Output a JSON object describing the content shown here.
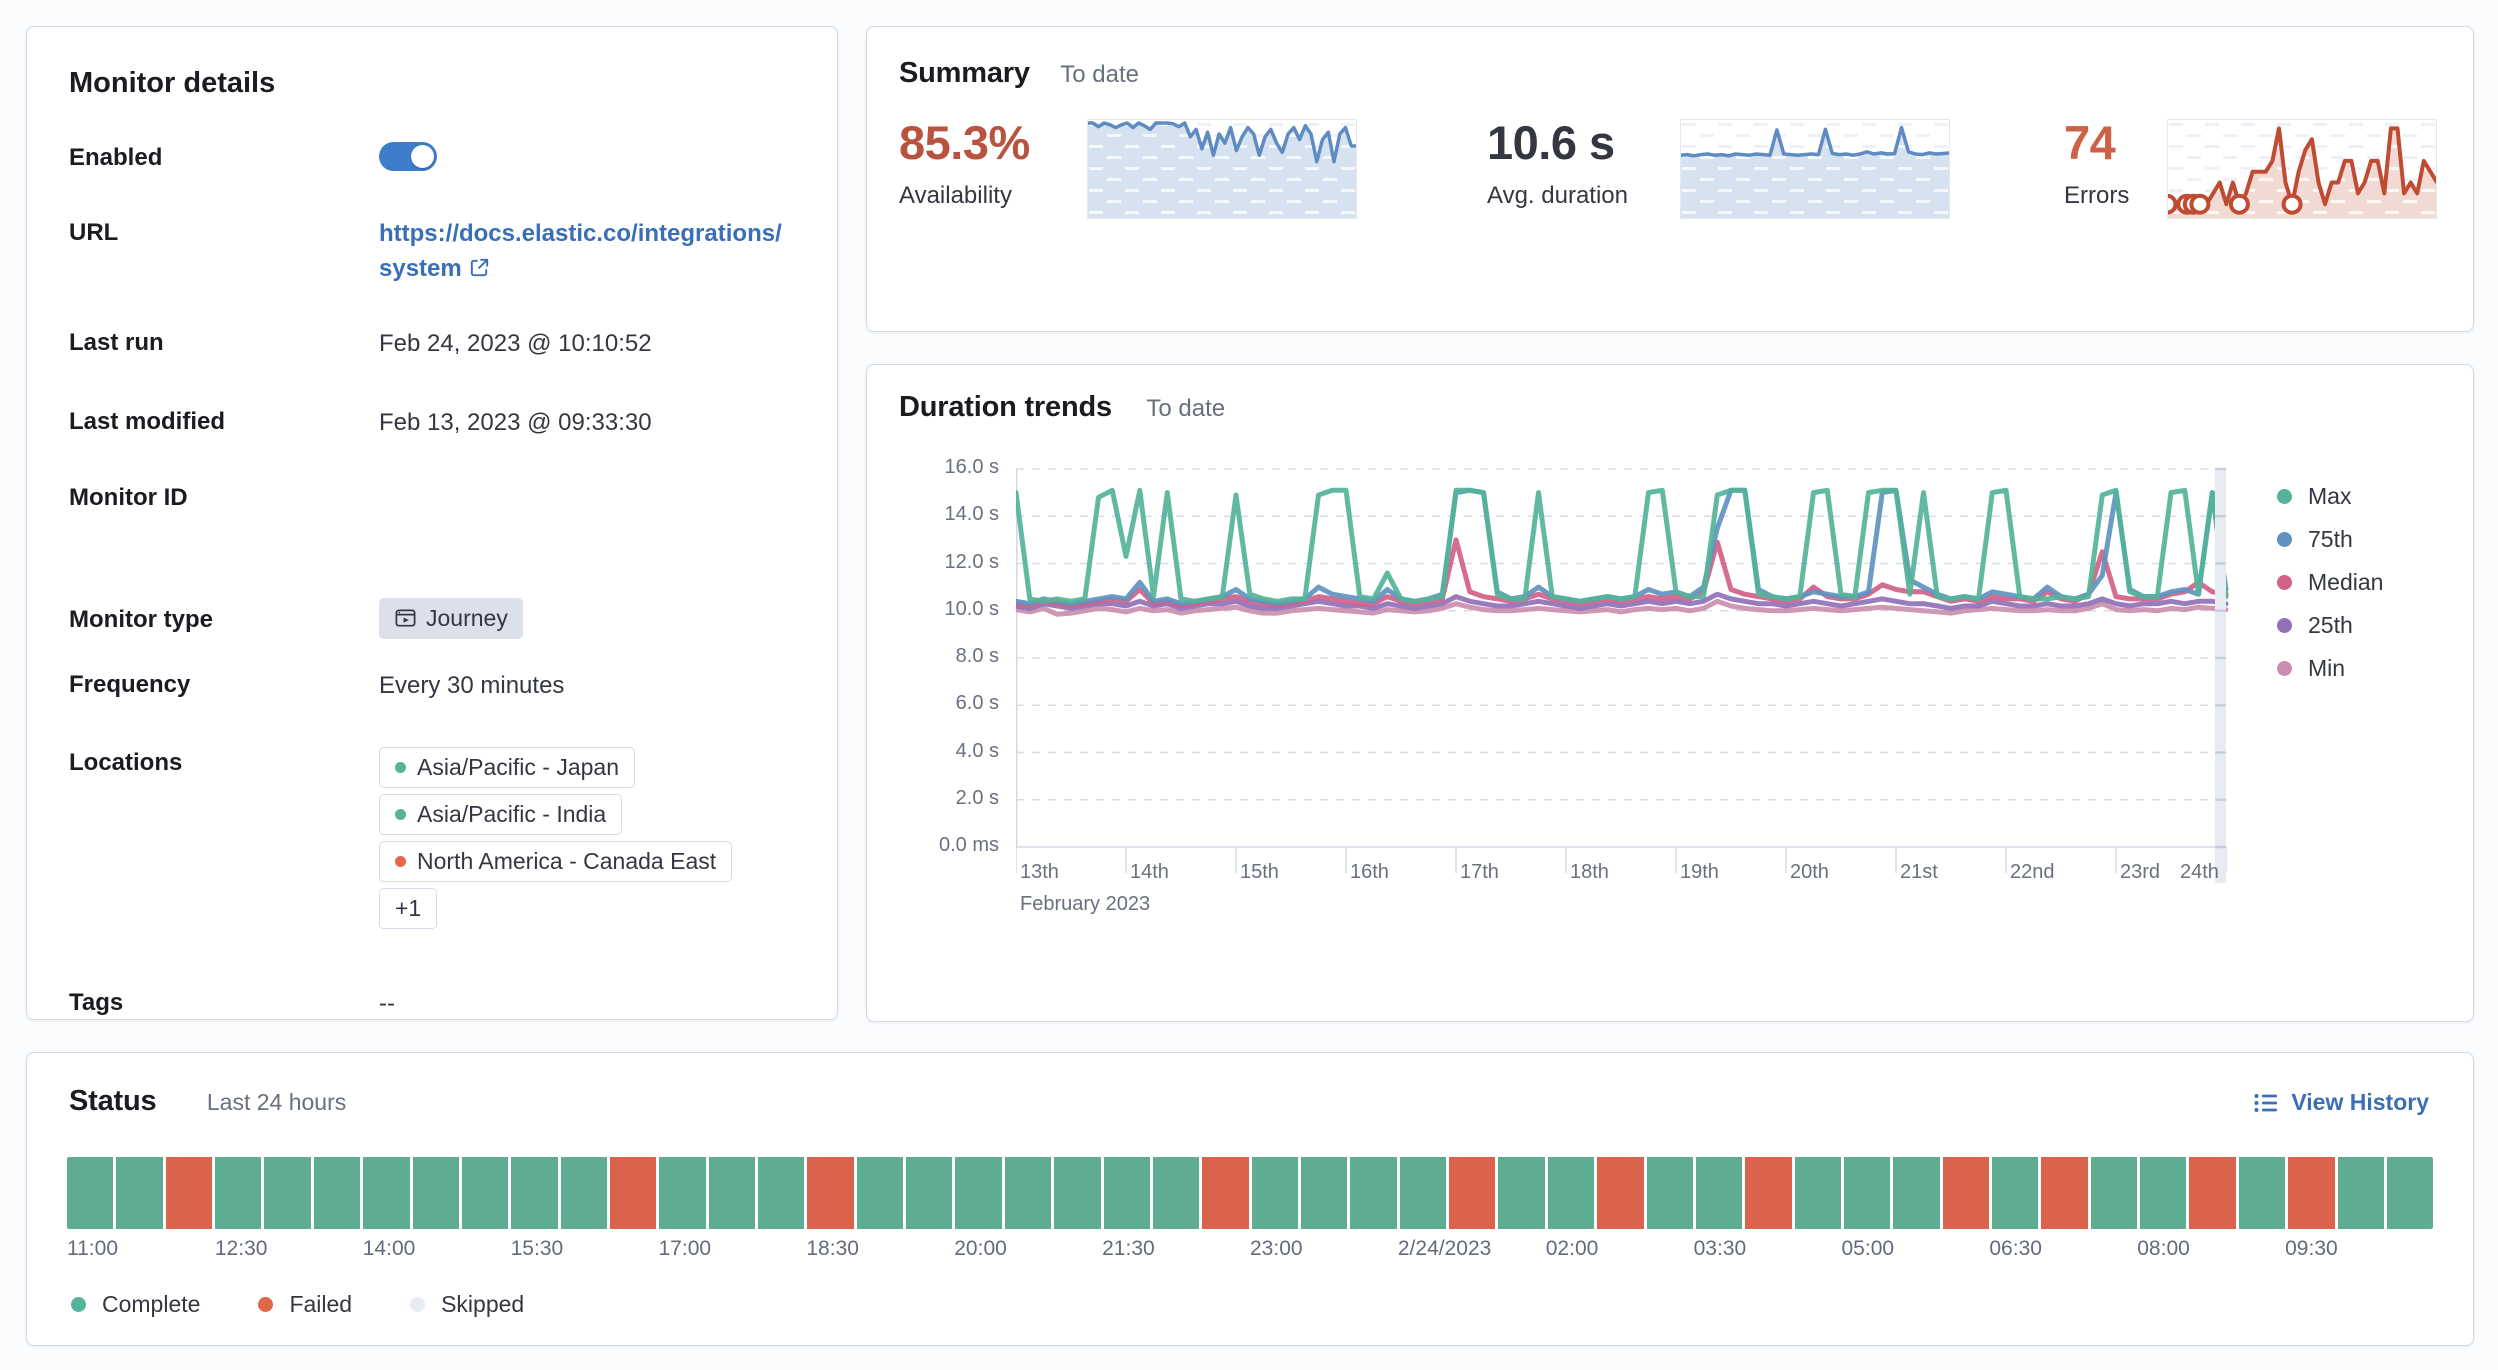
{
  "theme": {
    "link_color": "#3A6FB7",
    "toggle_on_color": "#3E7DC9",
    "panel_border": "#D3DAE6",
    "availability_color": "#B85340",
    "errors_color": "#CE6145",
    "sparkline_blue": "#5E8CC2",
    "sparkline_red": "#BE4B32"
  },
  "monitor_details": {
    "title": "Monitor details",
    "enabled": true,
    "rows": [
      {
        "label": "Enabled",
        "type": "toggle"
      },
      {
        "label": "URL",
        "type": "link",
        "value": "https://docs.elastic.co/integrations/system"
      },
      {
        "label": "Last run",
        "value": "Feb 24, 2023 @ 10:10:52"
      },
      {
        "label": "Last modified",
        "value": "Feb 13, 2023 @ 09:33:30"
      },
      {
        "label": "Monitor ID",
        "value": ""
      },
      {
        "label": "Monitor type",
        "type": "badge",
        "value": "Journey"
      },
      {
        "label": "Frequency",
        "value": "Every 30 minutes"
      },
      {
        "label": "Locations",
        "type": "tags",
        "tags": [
          {
            "label": "Asia/Pacific - Japan",
            "dot": "#54B399"
          },
          {
            "label": "Asia/Pacific - India",
            "dot": "#54B399"
          },
          {
            "label": "North America - Canada East",
            "dot": "#E7664C"
          },
          {
            "label": "+1"
          }
        ]
      },
      {
        "label": "Tags",
        "value": "--"
      }
    ]
  },
  "summary": {
    "title": "Summary",
    "subtitle": "To date",
    "metrics": [
      {
        "value": "85.3%",
        "label": "Availability",
        "color": "#B85340"
      },
      {
        "value": "10.6 s",
        "label": "Avg. duration",
        "color": "#343741"
      },
      {
        "value": "74",
        "label": "Errors",
        "color": "#CE6145"
      }
    ]
  },
  "duration_trends": {
    "title": "Duration trends",
    "subtitle": "To date"
  },
  "status": {
    "title": "Status",
    "subtitle": "Last 24 hours",
    "view_history": "View History",
    "legend": [
      {
        "label": "Complete",
        "color": "#54B399"
      },
      {
        "label": "Failed",
        "color": "#E0684A"
      },
      {
        "label": "Skipped",
        "color": "#E7EBF3"
      }
    ]
  },
  "chart_data": [
    {
      "type": "line",
      "title": "Duration trends",
      "subtitle": "To date",
      "x_label": "February 2023",
      "x_start": 13,
      "x_step": 0.125,
      "x_end": 24,
      "xticks": [
        "13th",
        "14th",
        "15th",
        "16th",
        "17th",
        "18th",
        "19th",
        "20th",
        "21st",
        "22nd",
        "23rd",
        "24th"
      ],
      "yticks": [
        "16.0 s",
        "14.0 s",
        "12.0 s",
        "10.0 s",
        "8.0 s",
        "6.0 s",
        "4.0 s",
        "2.0 s",
        "0.0 ms"
      ],
      "ylim": [
        0,
        16
      ],
      "unit": "seconds",
      "grid": "dashed-horizontal",
      "legend_position": "right",
      "series": [
        {
          "name": "Max",
          "color": "#54B399",
          "values": [
            15,
            10.5,
            10.4,
            10.5,
            10.4,
            10.5,
            14.8,
            15.1,
            12.3,
            15.1,
            10.6,
            15,
            10.5,
            10.4,
            10.5,
            10.6,
            14.9,
            10.7,
            10.5,
            10.4,
            10.5,
            10.5,
            14.9,
            15.1,
            15.1,
            10.6,
            10.5,
            11.6,
            10.5,
            10.4,
            10.5,
            10.6,
            15.1,
            15.1,
            15,
            10.7,
            10.5,
            10.5,
            15,
            10.6,
            10.5,
            10.4,
            10.5,
            10.6,
            10.5,
            10.6,
            15,
            15.1,
            10.8,
            10.6,
            10.6,
            14.9,
            15.1,
            15.1,
            10.7,
            10.6,
            10.5,
            10.6,
            15,
            15.1,
            10.7,
            10.6,
            15,
            15.1,
            15.1,
            10.7,
            15,
            10.6,
            10.5,
            10.6,
            10.5,
            15,
            15.1,
            10.6,
            10.5,
            10.5,
            10.6,
            10.5,
            10.6,
            14.9,
            15.1,
            10.8,
            10.6,
            10.6,
            15,
            15.1,
            10.7,
            15,
            10.6
          ]
        },
        {
          "name": "75th",
          "color": "#6092C0",
          "values": [
            10.4,
            10.3,
            10.5,
            10.4,
            10.3,
            10.4,
            10.5,
            10.6,
            10.5,
            11.2,
            10.4,
            10.5,
            10.3,
            10.4,
            10.5,
            10.6,
            10.9,
            10.5,
            10.4,
            10.3,
            10.4,
            10.5,
            11,
            10.7,
            10.6,
            10.5,
            10.4,
            10.9,
            10.5,
            10.4,
            10.5,
            10.7,
            15,
            15.1,
            15,
            10.8,
            10.5,
            10.6,
            11,
            10.6,
            10.5,
            10.4,
            10.5,
            10.6,
            10.5,
            10.6,
            10.9,
            10.7,
            10.8,
            10.6,
            11,
            13.5,
            15.1,
            15.1,
            10.9,
            10.6,
            10.5,
            10.6,
            10.8,
            10.7,
            10.6,
            10.6,
            10.8,
            15,
            15.1,
            11.3,
            11,
            10.7,
            10.5,
            10.6,
            10.5,
            10.8,
            10.7,
            10.6,
            10.5,
            11,
            10.6,
            10.5,
            10.7,
            11.5,
            15,
            10.9,
            10.6,
            10.6,
            10.8,
            10.9,
            10.7,
            15,
            10.9
          ]
        },
        {
          "name": "Median",
          "color": "#D36086",
          "values": [
            10.3,
            10.2,
            10.4,
            10.3,
            10.2,
            10.3,
            10.4,
            10.5,
            10.4,
            10.9,
            10.3,
            10.4,
            10.2,
            10.3,
            10.4,
            10.5,
            10.6,
            10.4,
            10.3,
            10.2,
            10.3,
            10.4,
            10.6,
            10.5,
            10.4,
            10.3,
            10.3,
            10.6,
            10.4,
            10.3,
            10.4,
            10.5,
            13,
            10.8,
            10.6,
            10.5,
            10.4,
            10.5,
            10.7,
            10.5,
            10.4,
            10.3,
            10.4,
            10.5,
            10.4,
            10.5,
            10.6,
            10.5,
            10.6,
            10.5,
            10.8,
            12.9,
            10.9,
            10.7,
            10.6,
            10.5,
            10.4,
            10.5,
            11,
            10.6,
            10.5,
            10.5,
            10.7,
            11.1,
            10.9,
            10.8,
            10.8,
            10.6,
            10.4,
            10.5,
            10.4,
            10.6,
            10.5,
            10.5,
            10.4,
            10.8,
            10.5,
            10.4,
            10.7,
            12.5,
            10.6,
            10.5,
            10.5,
            10.5,
            10.7,
            10.8,
            11.2,
            10.8,
            10.7
          ]
        },
        {
          "name": "25th",
          "color": "#9170B8",
          "values": [
            10.2,
            10.1,
            10.3,
            10.2,
            10.1,
            10.2,
            10.3,
            10.3,
            10.2,
            10.4,
            10.2,
            10.3,
            10.1,
            10.2,
            10.3,
            10.3,
            10.4,
            10.2,
            10.1,
            10.1,
            10.2,
            10.3,
            10.4,
            10.3,
            10.2,
            10.2,
            10.1,
            10.3,
            10.2,
            10.1,
            10.2,
            10.3,
            10.6,
            10.4,
            10.3,
            10.2,
            10.2,
            10.3,
            10.4,
            10.3,
            10.2,
            10.1,
            10.2,
            10.3,
            10.2,
            10.3,
            10.4,
            10.3,
            10.4,
            10.3,
            10.4,
            10.7,
            10.5,
            10.4,
            10.3,
            10.3,
            10.2,
            10.3,
            10.4,
            10.3,
            10.2,
            10.3,
            10.4,
            10.5,
            10.4,
            10.3,
            10.3,
            10.2,
            10.1,
            10.2,
            10.2,
            10.4,
            10.3,
            10.2,
            10.2,
            10.3,
            10.2,
            10.2,
            10.3,
            10.5,
            10.3,
            10.2,
            10.3,
            10.3,
            10.4,
            10.3,
            10.4,
            10.4,
            10.3
          ]
        },
        {
          "name": "Min",
          "color": "#CA8EAE",
          "values": [
            10.05,
            9.95,
            10.1,
            9.85,
            9.9,
            10,
            10.1,
            10.05,
            9.95,
            10.1,
            10,
            10.05,
            9.9,
            10,
            10.05,
            10.1,
            10.15,
            10,
            9.9,
            9.9,
            10,
            10.05,
            10.1,
            10.05,
            10,
            9.95,
            9.9,
            10.05,
            10,
            9.95,
            10,
            10.1,
            10.3,
            10.15,
            10.05,
            10,
            10,
            10.05,
            10.1,
            10.05,
            10,
            9.95,
            10,
            10.05,
            9.95,
            10.05,
            10.1,
            10.05,
            10.1,
            10,
            10.1,
            10.4,
            10.2,
            10.1,
            10.05,
            10,
            10,
            10.05,
            10.1,
            10.05,
            10,
            10.05,
            10.1,
            10.15,
            10.1,
            10.05,
            10,
            9.95,
            9.9,
            10,
            10.05,
            10.1,
            10.05,
            10,
            10,
            10.05,
            10,
            10,
            10.1,
            10.3,
            10.05,
            10,
            10.05,
            10,
            10.1,
            10.05,
            10.15,
            10.1,
            10.05
          ]
        }
      ]
    },
    {
      "type": "area",
      "name": "availability-sparkline",
      "color": "#5E8CC2",
      "fill": "pat-blue",
      "ylim": [
        0,
        100
      ],
      "values": [
        100,
        100,
        96,
        100,
        98,
        95,
        98,
        100,
        95,
        100,
        97,
        93,
        100,
        100,
        100,
        99,
        96,
        100,
        85,
        93,
        72,
        90,
        65,
        88,
        78,
        95,
        70,
        85,
        95,
        88,
        65,
        85,
        93,
        78,
        68,
        88,
        95,
        82,
        97,
        88,
        58,
        82,
        90,
        58,
        88,
        95,
        75,
        75
      ]
    },
    {
      "type": "area",
      "name": "avg-duration-sparkline",
      "color": "#5E8CC2",
      "fill": "pat-blue",
      "ylim": [
        0,
        16
      ],
      "values": [
        10.4,
        10.5,
        10.3,
        10.5,
        10.6,
        10.4,
        10.5,
        10.3,
        10.6,
        10.5,
        10.4,
        10.6,
        10.5,
        10.4,
        14.8,
        10.6,
        10.5,
        10.4,
        10.5,
        10.6,
        10.5,
        14.9,
        10.7,
        10.5,
        10.6,
        10.4,
        10.6,
        11,
        10.6,
        10.8,
        10.6,
        10.7,
        15.2,
        11,
        10.6,
        10.5,
        10.8,
        10.6,
        10.7,
        10.8
      ]
    },
    {
      "type": "area",
      "name": "errors-sparkline",
      "color": "#BE4B32",
      "fill": "pat-red",
      "ylim": [
        0,
        8.5
      ],
      "values": [
        1,
        1,
        1,
        1,
        1,
        1,
        1,
        2,
        3,
        1,
        3,
        1,
        2,
        4,
        4,
        4,
        5,
        8,
        3,
        1,
        4,
        6,
        7,
        3,
        1,
        3,
        3,
        5,
        5,
        2,
        3,
        5,
        5,
        2,
        8,
        8,
        2,
        3,
        2,
        5,
        4,
        3
      ],
      "ring_markers": [
        0,
        3,
        4,
        5,
        11,
        19
      ]
    },
    {
      "type": "status-strip",
      "title": "Status",
      "range": "Last 24 hours",
      "interval": "30m",
      "colors": {
        "complete": "#5EAD93",
        "failed": "#DA634C",
        "skipped": "#E9EDF5"
      },
      "values": [
        "complete",
        "complete",
        "failed",
        "complete",
        "complete",
        "complete",
        "complete",
        "complete",
        "complete",
        "complete",
        "complete",
        "failed",
        "complete",
        "complete",
        "complete",
        "failed",
        "complete",
        "complete",
        "complete",
        "complete",
        "complete",
        "complete",
        "complete",
        "failed",
        "complete",
        "complete",
        "complete",
        "complete",
        "failed",
        "complete",
        "complete",
        "failed",
        "complete",
        "complete",
        "failed",
        "complete",
        "complete",
        "complete",
        "failed",
        "complete",
        "failed",
        "complete",
        "complete",
        "failed",
        "complete",
        "failed",
        "complete",
        "complete"
      ],
      "labels": [
        "11:00",
        "12:30",
        "14:00",
        "15:30",
        "17:00",
        "18:30",
        "20:00",
        "21:30",
        "23:00",
        "2/24/2023",
        "02:00",
        "03:30",
        "05:00",
        "06:30",
        "08:00",
        "09:30"
      ]
    }
  ]
}
